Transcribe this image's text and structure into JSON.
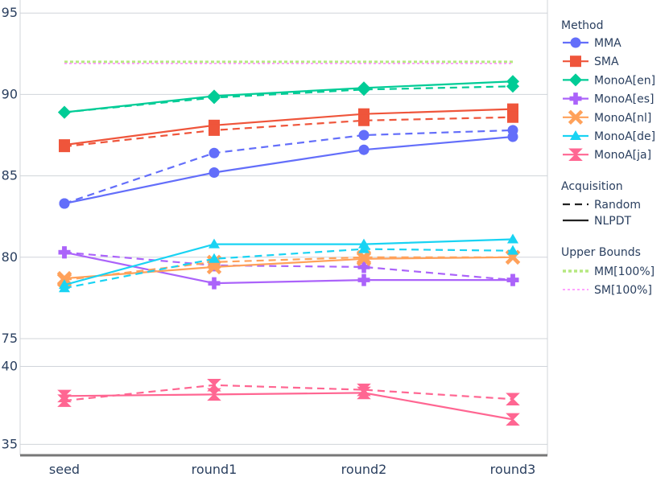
{
  "chart_data": {
    "type": "line",
    "categories": [
      "seed",
      "round1",
      "round2",
      "round3"
    ],
    "panels": [
      {
        "ylim": [
          74.8,
          95.8
        ],
        "yticks": [
          75,
          80,
          85,
          90,
          95
        ]
      },
      {
        "ylim": [
          34.4,
          40.8
        ],
        "yticks": [
          35,
          40
        ]
      }
    ],
    "grid": true,
    "legend_position": "right",
    "colors": {
      "MMA": "#636efa",
      "SMA": "#ef553b",
      "MonoA[en]": "#00cc96",
      "MonoA[es]": "#ab63fa",
      "MonoA[nl]": "#ffa15a",
      "MonoA[de]": "#19d3f3",
      "MonoA[ja]": "#ff6692",
      "MM[100%]": "#b6e880",
      "SM[100%]": "#ff97ff"
    },
    "series": [
      {
        "name": "MMA",
        "acquisition": "NLPDT",
        "marker": "circle",
        "values": [
          83.3,
          85.2,
          86.6,
          87.4
        ]
      },
      {
        "name": "MMA",
        "acquisition": "Random",
        "marker": "circle",
        "values": [
          83.3,
          86.4,
          87.5,
          87.8
        ]
      },
      {
        "name": "SMA",
        "acquisition": "NLPDT",
        "marker": "square",
        "values": [
          86.9,
          88.1,
          88.8,
          89.1
        ]
      },
      {
        "name": "SMA",
        "acquisition": "Random",
        "marker": "square",
        "values": [
          86.8,
          87.8,
          88.4,
          88.6
        ]
      },
      {
        "name": "MonoA[en]",
        "acquisition": "NLPDT",
        "marker": "diamond",
        "values": [
          88.9,
          89.9,
          90.4,
          90.8
        ]
      },
      {
        "name": "MonoA[en]",
        "acquisition": "Random",
        "marker": "diamond",
        "values": [
          88.9,
          89.8,
          90.3,
          90.5
        ]
      },
      {
        "name": "MonoA[es]",
        "acquisition": "NLPDT",
        "marker": "cross",
        "values": [
          80.3,
          78.4,
          78.6,
          78.6
        ]
      },
      {
        "name": "MonoA[es]",
        "acquisition": "Random",
        "marker": "cross",
        "values": [
          80.3,
          79.5,
          79.4,
          78.6
        ]
      },
      {
        "name": "MonoA[nl]",
        "acquisition": "NLPDT",
        "marker": "x",
        "values": [
          78.7,
          79.4,
          79.9,
          80.0
        ]
      },
      {
        "name": "MonoA[nl]",
        "acquisition": "Random",
        "marker": "x",
        "values": [
          78.6,
          79.7,
          80.0,
          80.0
        ]
      },
      {
        "name": "MonoA[de]",
        "acquisition": "NLPDT",
        "marker": "triangle-up",
        "values": [
          78.3,
          80.8,
          80.8,
          81.1
        ]
      },
      {
        "name": "MonoA[de]",
        "acquisition": "Random",
        "marker": "triangle-up",
        "values": [
          78.1,
          79.9,
          80.5,
          80.4
        ]
      },
      {
        "name": "MonoA[ja]",
        "acquisition": "NLPDT",
        "marker": "hourglass",
        "values": [
          38.1,
          38.2,
          38.3,
          36.6
        ]
      },
      {
        "name": "MonoA[ja]",
        "acquisition": "Random",
        "marker": "hourglass",
        "values": [
          37.8,
          38.8,
          38.5,
          37.9
        ]
      },
      {
        "name": "MM[100%]",
        "acquisition": "Upper Bounds",
        "marker": "none",
        "values": [
          92.0,
          92.0,
          92.0,
          92.0
        ]
      },
      {
        "name": "SM[100%]",
        "acquisition": "Upper Bounds",
        "marker": "none",
        "values": [
          91.9,
          91.9,
          91.9,
          91.9
        ]
      }
    ],
    "legend": {
      "method_title": "Method",
      "methods": [
        "MMA",
        "SMA",
        "MonoA[en]",
        "MonoA[es]",
        "MonoA[nl]",
        "MonoA[de]",
        "MonoA[ja]"
      ],
      "acquisition_title": "Acquisition",
      "acquisitions": [
        "Random",
        "NLPDT"
      ],
      "bounds_title": "Upper Bounds",
      "bounds": [
        "MM[100%]",
        "SM[100%]"
      ]
    }
  }
}
